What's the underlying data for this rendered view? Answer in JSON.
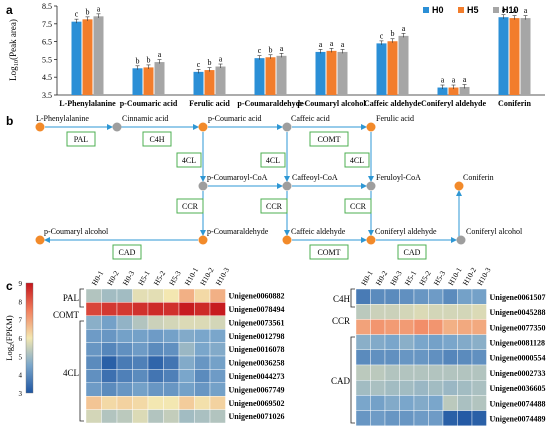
{
  "panels": {
    "a": "a",
    "b": "b",
    "c": "c"
  },
  "chart_data": {
    "type": "bar",
    "ylabel": "Log10(Peak area)",
    "ylabel_base": "Log",
    "ylabel_sub": "10",
    "ylabel_rest": "(Peak area)",
    "ylim": [
      3.5,
      8.5
    ],
    "yticks": [
      "3.5",
      "4.5",
      "5.5",
      "6.5",
      "7.5",
      "8.5"
    ],
    "categories": [
      "L-Phenylalanine",
      "p-Coumaric acid",
      "Ferulic acid",
      "p-Coumaraldehyde",
      "p-Coumaryl alcohol",
      "Caffeic aldehyde",
      "Coniferyl aldehyde",
      "Coniferin"
    ],
    "legend_position": "top-right",
    "series": [
      {
        "name": "H0",
        "color": "#2b8fd6",
        "values": [
          7.62,
          5.0,
          4.8,
          5.57,
          5.92,
          6.4,
          3.92,
          7.87
        ]
      },
      {
        "name": "H5",
        "color": "#f27d2c",
        "values": [
          7.75,
          5.05,
          4.9,
          5.62,
          5.98,
          6.52,
          3.92,
          7.82
        ]
      },
      {
        "name": "H10",
        "color": "#a6a6a6",
        "values": [
          7.92,
          5.35,
          5.1,
          5.7,
          5.92,
          6.82,
          3.95,
          7.82
        ]
      }
    ],
    "letters": [
      [
        "c",
        "b",
        "a"
      ],
      [
        "b",
        "b",
        "a"
      ],
      [
        "c",
        "b",
        "a"
      ],
      [
        "c",
        "b",
        "a"
      ],
      [
        "a",
        "a",
        "a"
      ],
      [
        "c",
        "b",
        "a"
      ],
      [
        "a",
        "a",
        "a"
      ],
      [
        "a",
        "a",
        "a"
      ]
    ]
  },
  "pathway": {
    "nodes": {
      "lphe": "L-Phenylalanine",
      "cinn": "Cinnamic acid",
      "pcou": "p-Coumaric acid",
      "caff": "Caffeic acid",
      "feru": "Ferulic acid",
      "pcoa": "p-Coumaroyl-CoA",
      "ccoa": "Caffeoyl-CoA",
      "fcoa": "Feruloyl-CoA",
      "conf": "Coniferin",
      "palc": "p-Coumaryl alcohol",
      "pald": "p-Coumaraldehyde",
      "cald": "Caffeic aldehyde",
      "cnald": "Coniferyl aldehyde",
      "cnalc": "Coniferyl alcohol"
    },
    "enzymes": {
      "pal": "PAL",
      "c4h": "C4H",
      "comt1": "COMT",
      "cl1": "4CL",
      "cl2": "4CL",
      "cl3": "4CL",
      "ccr1": "CCR",
      "ccr2": "CCR",
      "ccr3": "CCR",
      "cad1": "CAD",
      "comt2": "COMT",
      "cad2": "CAD"
    }
  },
  "heatmap": {
    "legend_title": "Log2(FPKM)",
    "legend_title_base": "Log",
    "legend_title_sub": "2",
    "legend_title_rest": "(FPKM)",
    "scale_ticks": [
      "9",
      "8",
      "7",
      "6",
      "5",
      "4",
      "3"
    ],
    "columns": [
      "H0-1",
      "H0-2",
      "H0-3",
      "H5-1",
      "H5-2",
      "H5-3",
      "H10-1",
      "H10-2",
      "H10-3"
    ],
    "left": {
      "groups": [
        "PAL",
        "COMT",
        "4CL"
      ],
      "genes": [
        "Unigene0060882",
        "Unigene0078494",
        "Unigene0073561",
        "Unigene0012798",
        "Unigene0016078",
        "Unigene0036258",
        "Unigene0044273",
        "Unigene0067749",
        "Unigene0069502",
        "Unigene0071026"
      ],
      "values": [
        [
          5.2,
          5.0,
          5.0,
          5.8,
          5.8,
          6.0,
          6.8,
          6.2,
          6.8
        ],
        [
          8.3,
          8.5,
          8.5,
          8.6,
          8.7,
          8.6,
          8.9,
          8.7,
          8.9
        ],
        [
          4.7,
          4.4,
          4.8,
          5.2,
          5.5,
          5.6,
          5.7,
          5.7,
          5.6
        ],
        [
          4.3,
          4.2,
          4.4,
          4.4,
          4.3,
          4.4,
          4.6,
          4.5,
          4.5
        ],
        [
          4.2,
          3.9,
          4.1,
          4.3,
          4.0,
          4.1,
          4.9,
          4.5,
          4.6
        ],
        [
          4.0,
          3.2,
          3.7,
          3.8,
          3.3,
          3.6,
          4.6,
          4.2,
          4.4
        ],
        [
          4.1,
          3.5,
          3.8,
          4.0,
          3.6,
          3.8,
          4.5,
          4.0,
          4.3
        ],
        [
          4.3,
          4.0,
          4.2,
          4.4,
          4.2,
          4.2,
          4.4,
          4.2,
          4.4
        ],
        [
          6.5,
          6.2,
          6.3,
          6.2,
          6.0,
          6.0,
          6.4,
          6.1,
          6.3
        ],
        [
          5.6,
          5.2,
          5.3,
          5.7,
          5.2,
          5.4,
          5.0,
          5.1,
          5.2
        ]
      ]
    },
    "right": {
      "groups": [
        "C4H",
        "CCR",
        "CAD"
      ],
      "genes": [
        "Unigene0061507",
        "Unigene0045288",
        "Unigene0077350",
        "Unigene0081128",
        "Unigene0000554",
        "Unigene0002733",
        "Unigene0036605",
        "Unigene0074488",
        "Unigene0074489"
      ],
      "values": [
        [
          3.7,
          4.0,
          4.0,
          4.1,
          4.2,
          4.3,
          4.0,
          4.4,
          4.4
        ],
        [
          5.3,
          5.5,
          5.5,
          5.6,
          5.7,
          5.6,
          5.6,
          5.6,
          5.7
        ],
        [
          7.0,
          7.2,
          7.1,
          7.1,
          7.3,
          7.2,
          6.8,
          6.9,
          6.9
        ],
        [
          4.7,
          4.6,
          4.5,
          4.7,
          4.5,
          4.4,
          4.5,
          4.6,
          4.7
        ],
        [
          4.0,
          4.1,
          4.1,
          4.2,
          4.2,
          4.1,
          3.9,
          4.0,
          4.1
        ],
        [
          5.3,
          5.3,
          5.2,
          5.2,
          5.2,
          5.2,
          5.2,
          5.2,
          5.2
        ],
        [
          5.0,
          5.1,
          5.0,
          5.0,
          4.9,
          5.0,
          4.9,
          5.0,
          5.1
        ],
        [
          4.5,
          4.4,
          4.6,
          4.5,
          4.6,
          4.5,
          5.3,
          5.1,
          5.2
        ],
        [
          4.2,
          4.3,
          4.2,
          4.2,
          4.3,
          4.3,
          3.2,
          3.1,
          3.2
        ]
      ]
    }
  }
}
